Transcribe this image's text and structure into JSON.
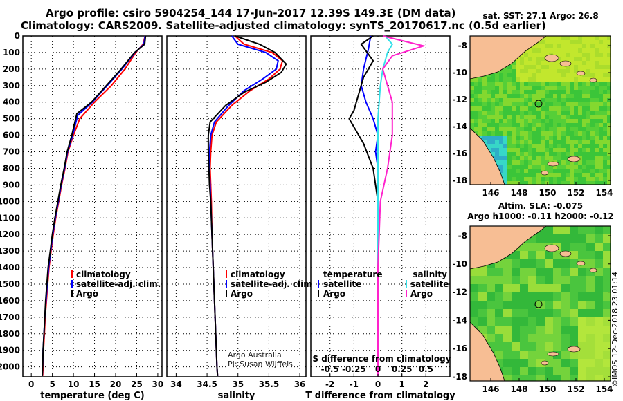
{
  "titles": {
    "line1": "Argo profile: csiro 5904254_144 17-Jun-2017 12.39S 149.3E (DM data)",
    "line2": "Climatology: CARS2009. Satellite-adjusted climatology: synTS_20170617.nc (0.5d earlier)"
  },
  "colors": {
    "climatology": "#ff0000",
    "satellite": "#0000ff",
    "argo": "#000000",
    "sat_salinity": "#33e0e8",
    "argo_salinity": "#ff22cc"
  },
  "depth_axis": {
    "ticks": [
      0,
      100,
      200,
      300,
      400,
      500,
      600,
      700,
      800,
      900,
      1000,
      1100,
      1200,
      1300,
      1400,
      1500,
      1600,
      1700,
      1800,
      1900,
      2000
    ],
    "range": [
      0,
      2060
    ]
  },
  "notes": {
    "line1": "Argo Australia",
    "line2": "PI: Susan Wijffels"
  },
  "watermark": "©IMOS 12-Dec-2018 23:01:14",
  "chart_data": [
    {
      "type": "line",
      "xlabel": "temperature (deg C)",
      "xticks": [
        0,
        5,
        10,
        15,
        20,
        25,
        30
      ],
      "xlim": [
        -2,
        31
      ],
      "legend": [
        "climatology",
        "satellite-adj. clim.",
        "Argo"
      ],
      "series": [
        {
          "name": "climatology",
          "color": "#ff0000",
          "points": [
            [
              27.0,
              0
            ],
            [
              26.5,
              50
            ],
            [
              24.8,
              100
            ],
            [
              22.2,
              200
            ],
            [
              19.0,
              300
            ],
            [
              15.0,
              400
            ],
            [
              11.5,
              500
            ],
            [
              10.0,
              600
            ],
            [
              8.7,
              700
            ],
            [
              8.0,
              800
            ],
            [
              7.2,
              900
            ],
            [
              6.5,
              1000
            ],
            [
              5.8,
              1100
            ],
            [
              5.2,
              1200
            ],
            [
              4.7,
              1300
            ],
            [
              4.2,
              1400
            ],
            [
              3.9,
              1500
            ],
            [
              3.6,
              1600
            ],
            [
              3.3,
              1700
            ],
            [
              3.1,
              1800
            ],
            [
              2.9,
              1900
            ],
            [
              2.8,
              2000
            ],
            [
              2.7,
              2055
            ]
          ]
        },
        {
          "name": "satellite-adj. clim.",
          "color": "#0000ff",
          "points": [
            [
              27.0,
              0
            ],
            [
              26.7,
              50
            ],
            [
              24.6,
              100
            ],
            [
              21.5,
              200
            ],
            [
              18.0,
              300
            ],
            [
              14.5,
              400
            ],
            [
              11.0,
              480
            ],
            [
              9.8,
              600
            ],
            [
              8.6,
              700
            ],
            [
              7.9,
              800
            ],
            [
              7.1,
              900
            ],
            [
              6.4,
              1000
            ],
            [
              5.7,
              1100
            ],
            [
              5.1,
              1200
            ],
            [
              4.6,
              1300
            ],
            [
              4.1,
              1400
            ],
            [
              3.8,
              1500
            ],
            [
              3.5,
              1600
            ],
            [
              3.2,
              1700
            ],
            [
              3.0,
              1800
            ],
            [
              2.8,
              1900
            ],
            [
              2.7,
              2000
            ],
            [
              2.6,
              2055
            ]
          ]
        },
        {
          "name": "Argo",
          "color": "#000000",
          "points": [
            [
              27.1,
              0
            ],
            [
              26.9,
              50
            ],
            [
              24.5,
              100
            ],
            [
              21.3,
              200
            ],
            [
              17.8,
              300
            ],
            [
              14.3,
              400
            ],
            [
              10.8,
              470
            ],
            [
              9.6,
              600
            ],
            [
              8.5,
              700
            ],
            [
              7.8,
              800
            ],
            [
              7.0,
              900
            ],
            [
              6.3,
              1000
            ],
            [
              5.6,
              1100
            ],
            [
              5.0,
              1200
            ],
            [
              4.5,
              1300
            ],
            [
              4.0,
              1400
            ],
            [
              3.7,
              1500
            ],
            [
              3.4,
              1600
            ],
            [
              3.2,
              1700
            ],
            [
              3.0,
              1800
            ],
            [
              2.8,
              1900
            ],
            [
              2.7,
              2000
            ],
            [
              2.6,
              2055
            ]
          ]
        }
      ]
    },
    {
      "type": "line",
      "xlabel": "salinity",
      "xticks": [
        34,
        34.5,
        35,
        35.5,
        36
      ],
      "xlim": [
        33.85,
        36.1
      ],
      "legend": [
        "climatology",
        "satellite-adj. clim.",
        "Argo"
      ],
      "series": [
        {
          "name": "climatology",
          "color": "#ff0000",
          "points": [
            [
              34.95,
              0
            ],
            [
              35.1,
              50
            ],
            [
              35.55,
              100
            ],
            [
              35.72,
              150
            ],
            [
              35.68,
              200
            ],
            [
              35.5,
              260
            ],
            [
              35.2,
              330
            ],
            [
              34.9,
              420
            ],
            [
              34.65,
              520
            ],
            [
              34.58,
              600
            ],
            [
              34.56,
              700
            ],
            [
              34.55,
              800
            ],
            [
              34.56,
              900
            ],
            [
              34.57,
              1000
            ],
            [
              34.58,
              1200
            ],
            [
              34.6,
              1400
            ],
            [
              34.62,
              1600
            ],
            [
              34.64,
              1800
            ],
            [
              34.66,
              2000
            ],
            [
              34.67,
              2055
            ]
          ]
        },
        {
          "name": "satellite-adj. clim.",
          "color": "#0000ff",
          "points": [
            [
              34.9,
              0
            ],
            [
              35.0,
              50
            ],
            [
              35.45,
              100
            ],
            [
              35.65,
              150
            ],
            [
              35.62,
              200
            ],
            [
              35.4,
              260
            ],
            [
              35.1,
              330
            ],
            [
              34.85,
              420
            ],
            [
              34.62,
              520
            ],
            [
              34.56,
              600
            ],
            [
              34.54,
              700
            ],
            [
              34.54,
              800
            ],
            [
              34.55,
              900
            ],
            [
              34.56,
              1000
            ],
            [
              34.58,
              1200
            ],
            [
              34.6,
              1400
            ],
            [
              34.62,
              1600
            ],
            [
              34.64,
              1800
            ],
            [
              34.66,
              2000
            ],
            [
              34.67,
              2055
            ]
          ]
        },
        {
          "name": "Argo",
          "color": "#000000",
          "points": [
            [
              34.95,
              0
            ],
            [
              35.35,
              50
            ],
            [
              35.6,
              100
            ],
            [
              35.78,
              170
            ],
            [
              35.7,
              220
            ],
            [
              35.45,
              280
            ],
            [
              35.1,
              340
            ],
            [
              34.8,
              420
            ],
            [
              34.55,
              520
            ],
            [
              34.52,
              600
            ],
            [
              34.52,
              700
            ],
            [
              34.53,
              800
            ],
            [
              34.54,
              900
            ],
            [
              34.56,
              1000
            ],
            [
              34.58,
              1200
            ],
            [
              34.6,
              1400
            ],
            [
              34.62,
              1600
            ],
            [
              34.64,
              1800
            ],
            [
              34.66,
              2000
            ],
            [
              34.67,
              2055
            ]
          ]
        }
      ]
    },
    {
      "type": "line",
      "xlabel": "T difference from climatology",
      "xticks": [
        -2,
        -1,
        0,
        1,
        2
      ],
      "xlim": [
        -2.8,
        3.0
      ],
      "top_xlabel": "S difference from climatology",
      "top_xticks": [
        -0.5,
        -0.25,
        0,
        0.25,
        0.5
      ],
      "legend_left_title": "temperature",
      "legend_left": [
        "satellite",
        "Argo"
      ],
      "legend_right_title": "salinity",
      "legend_right": [
        "satellite",
        "Argo"
      ],
      "series": [
        {
          "name": "temperature satellite",
          "color": "#0000ff",
          "points": [
            [
              -0.3,
              0
            ],
            [
              -0.4,
              80
            ],
            [
              -0.6,
              200
            ],
            [
              -0.7,
              300
            ],
            [
              -0.5,
              400
            ],
            [
              -0.2,
              500
            ],
            [
              0.0,
              600
            ],
            [
              -0.1,
              700
            ],
            [
              0.0,
              800
            ],
            [
              0.0,
              1000
            ],
            [
              0.0,
              2055
            ]
          ]
        },
        {
          "name": "temperature Argo",
          "color": "#000000",
          "points": [
            [
              -0.2,
              0
            ],
            [
              -0.7,
              50
            ],
            [
              -0.2,
              150
            ],
            [
              -0.6,
              250
            ],
            [
              -1.0,
              450
            ],
            [
              -1.2,
              500
            ],
            [
              -0.6,
              650
            ],
            [
              -0.2,
              800
            ],
            [
              0.0,
              1000
            ],
            [
              0.0,
              2055
            ]
          ]
        },
        {
          "name": "salinity satellite",
          "color": "#33e0e8",
          "points": [
            [
              0.3,
              0
            ],
            [
              0.6,
              50
            ],
            [
              0.4,
              100
            ],
            [
              0.2,
              200
            ],
            [
              0.1,
              300
            ],
            [
              0.0,
              500
            ],
            [
              0.0,
              2055
            ]
          ]
        },
        {
          "name": "salinity Argo",
          "color": "#ff22cc",
          "points": [
            [
              0.2,
              0
            ],
            [
              1.9,
              60
            ],
            [
              0.6,
              120
            ],
            [
              0.2,
              200
            ],
            [
              0.6,
              400
            ],
            [
              0.6,
              600
            ],
            [
              0.4,
              800
            ],
            [
              0.1,
              1000
            ],
            [
              0.0,
              1400
            ],
            [
              0.0,
              2055
            ]
          ]
        }
      ]
    }
  ],
  "maps": [
    {
      "title": "sat. SST: 27.1 Argo: 26.8",
      "lon_ticks": [
        "146",
        "148",
        "150",
        "152",
        "154"
      ],
      "lat_ticks": [
        "-8",
        "-10",
        "-12",
        "-14",
        "-16",
        "-18"
      ]
    },
    {
      "title1": "Altim. SLA: -0.075",
      "title2": "Argo h1000: -0.11 h2000: -0.12",
      "lon_ticks": [
        "146",
        "148",
        "150",
        "152",
        "154"
      ],
      "lat_ticks": [
        "-8",
        "-10",
        "-12",
        "-14",
        "-16",
        "-18"
      ]
    }
  ]
}
